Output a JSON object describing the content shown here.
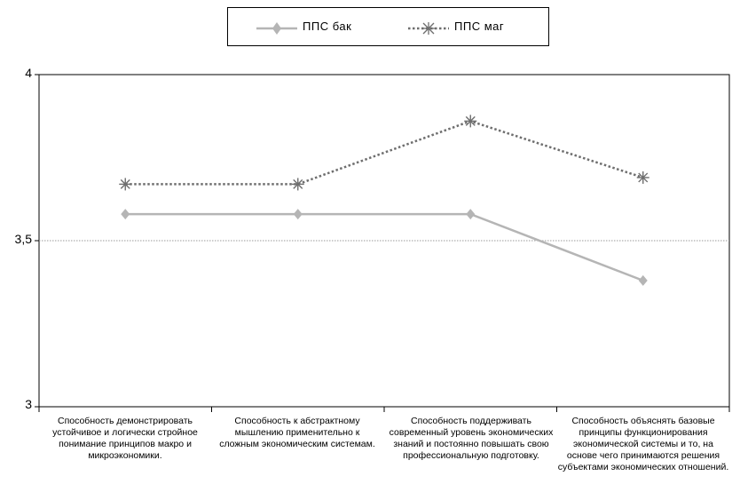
{
  "chart_data": {
    "type": "line",
    "categories": [
      "Способность демонстрировать устойчивое и логически стройное понимание принципов макро и микроэкономики.",
      "Способность к абстрактному мышлению применительно к сложным экономическим системам.",
      "Способность поддерживать современный уровень экономических знаний и постоянно повышать свою профессиональную подготовку.",
      "Способность объяснять базовые принципы функционирования экономической системы и то, на основе чего принимаются решения субъектами экономических отношений."
    ],
    "series": [
      {
        "name": "ППС бак",
        "values": [
          3.58,
          3.58,
          3.58,
          3.38
        ],
        "color": "#b5b5b5",
        "style": "solid",
        "marker": "diamond"
      },
      {
        "name": "ППС маг",
        "values": [
          3.67,
          3.67,
          3.86,
          3.69
        ],
        "color": "#6e6e6e",
        "style": "dotted",
        "marker": "asterisk"
      }
    ],
    "ylim": [
      3,
      4
    ],
    "yticks": [
      "3",
      "3,5",
      "4"
    ],
    "grid": "horizontal",
    "legend": "top-center",
    "title": "",
    "xlabel": "",
    "ylabel": ""
  }
}
